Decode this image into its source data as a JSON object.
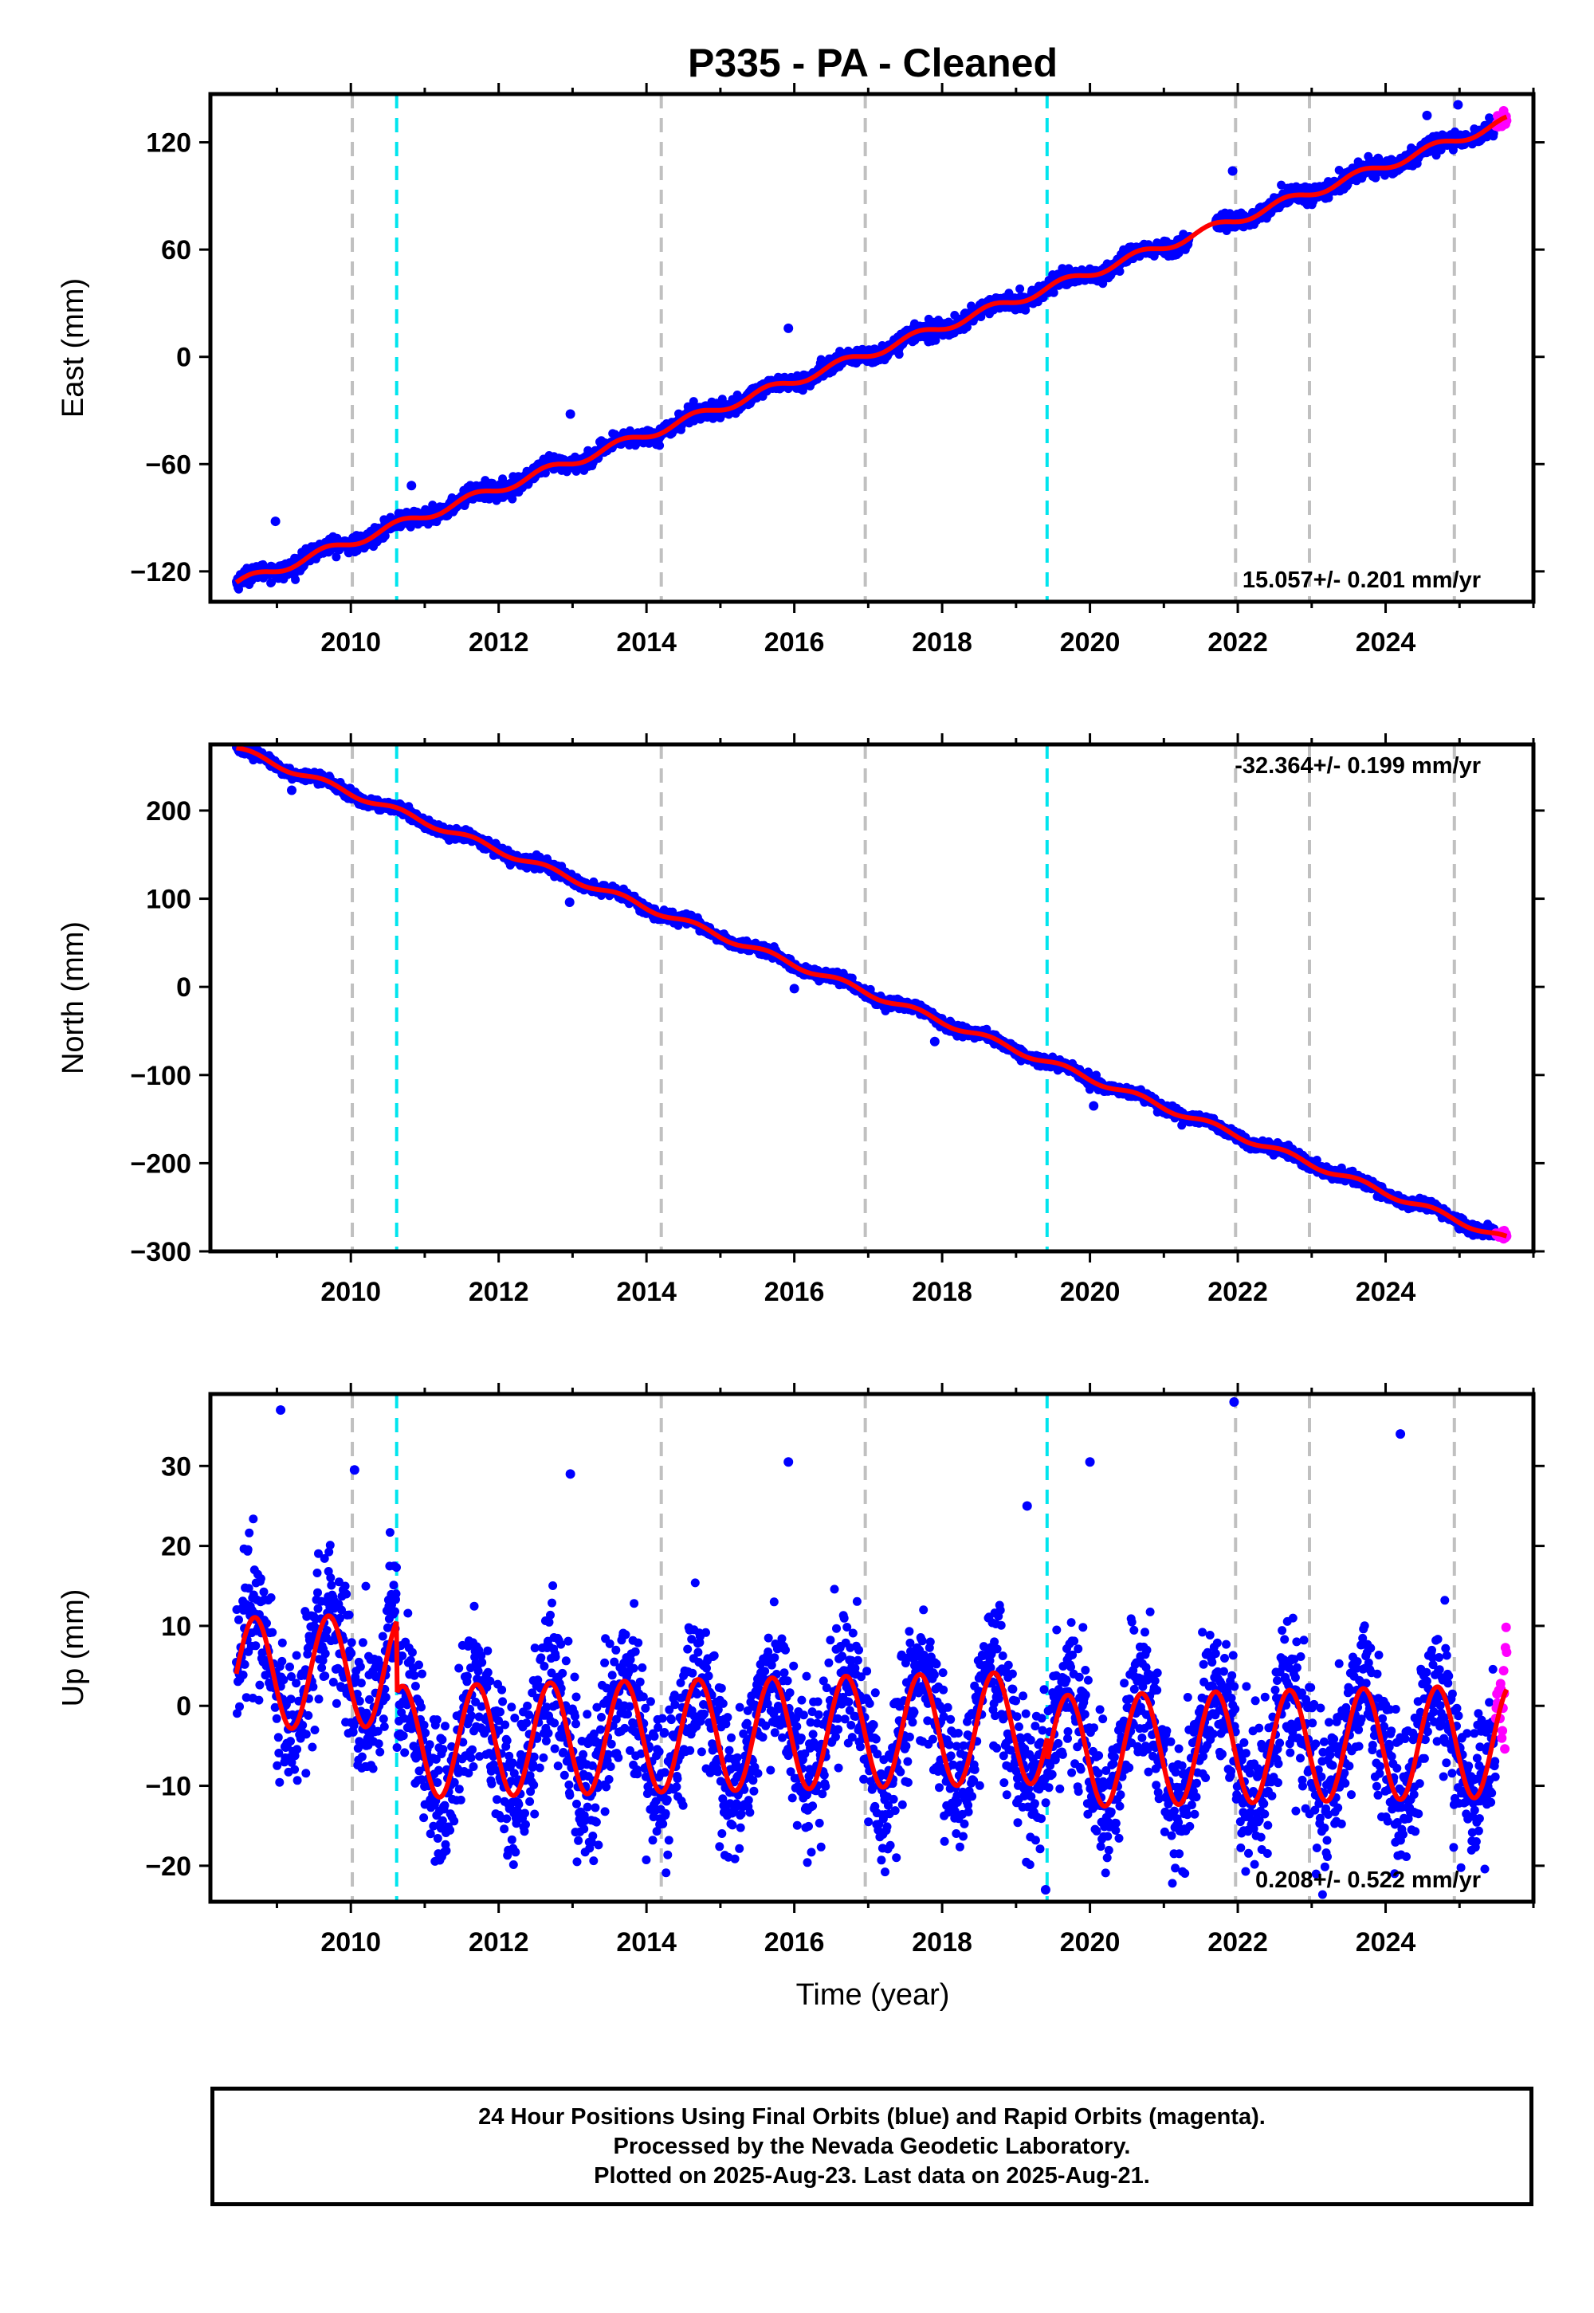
{
  "title": "P335  - PA - Cleaned",
  "colors": {
    "final_orbits": "#0000ff",
    "rapid_orbits": "#ff00ff",
    "model_fit": "#ff0000",
    "antenna_change": "#00e5ee",
    "equipment_change": "#c0c0c0"
  },
  "xlabel": "Time (year)",
  "footer": {
    "line1": "24 Hour Positions Using Final Orbits (blue) and Rapid Orbits (magenta).",
    "line2": "Processed by the Nevada Geodetic Laboratory.",
    "line3": "Plotted on 2025-Aug-23. Last data on 2025-Aug-21."
  },
  "chart_data": [
    {
      "type": "scatter",
      "component": "east",
      "ylabel": "East (mm)",
      "rate_label": "15.057+/- 0.201 mm/yr",
      "rate_position": "bottom-right",
      "xlim": [
        2008.1,
        2026.0
      ],
      "ylim": [
        -137,
        147
      ],
      "xticks": [
        2010,
        2012,
        2014,
        2016,
        2018,
        2020,
        2022,
        2024
      ],
      "yticks": [
        -120,
        -60,
        0,
        60,
        120
      ],
      "rate_mm_per_yr": 15.057,
      "value_at_start": -127,
      "start_year": 2008.45,
      "end_year": 2025.64,
      "seasonal_amplitude": 2.5,
      "scatter_mm": 2.2,
      "antenna_changes": [
        2010.62,
        2019.42
      ],
      "equipment_changes": [
        2010.02,
        2014.2,
        2016.96,
        2021.97,
        2022.97,
        2024.93
      ],
      "spikes": [
        {
          "year": 2008.98,
          "value": -92
        },
        {
          "year": 2010.82,
          "value": -72
        },
        {
          "year": 2012.97,
          "value": -32
        },
        {
          "year": 2015.92,
          "value": 16
        },
        {
          "year": 2021.93,
          "value": 104
        },
        {
          "year": 2023.9,
          "value": 111
        },
        {
          "year": 2024.56,
          "value": 135
        },
        {
          "year": 2024.98,
          "value": 141
        }
      ]
    },
    {
      "type": "scatter",
      "component": "north",
      "ylabel": "North (mm)",
      "rate_label": "-32.364+/- 0.199 mm/yr",
      "rate_position": "top-right",
      "xlim": [
        2008.1,
        2026.0
      ],
      "ylim": [
        -300,
        275
      ],
      "xticks": [
        2010,
        2012,
        2014,
        2016,
        2018,
        2020,
        2022,
        2024
      ],
      "yticks": [
        -300,
        -200,
        -100,
        0,
        100,
        200
      ],
      "rate_mm_per_yr": -32.364,
      "value_at_start": 270,
      "start_year": 2008.45,
      "end_year": 2025.64,
      "seasonal_amplitude": 3.5,
      "scatter_mm": 3.0,
      "antenna_changes": [
        2010.62,
        2019.42
      ],
      "equipment_changes": [
        2010.02,
        2014.2,
        2016.96,
        2021.97,
        2022.97,
        2024.93
      ],
      "spikes": [
        {
          "year": 2009.2,
          "value": 223
        },
        {
          "year": 2012.96,
          "value": 96
        },
        {
          "year": 2016.0,
          "value": -2
        },
        {
          "year": 2017.9,
          "value": -62
        },
        {
          "year": 2020.05,
          "value": -135
        }
      ]
    },
    {
      "type": "scatter",
      "component": "up",
      "ylabel": "Up (mm)",
      "rate_label": "0.208+/- 0.522 mm/yr",
      "rate_position": "bottom-right",
      "xlim": [
        2008.1,
        2026.0
      ],
      "ylim": [
        -24.5,
        39
      ],
      "xticks": [
        2010,
        2012,
        2014,
        2016,
        2018,
        2020,
        2022,
        2024
      ],
      "yticks": [
        -20,
        -10,
        0,
        10,
        20,
        30
      ],
      "rate_mm_per_yr": 0.208,
      "value_at_start": 10,
      "start_year": 2008.45,
      "end_year": 2025.64,
      "seasonal_amplitude": 7,
      "scatter_mm": 4.5,
      "antenna_changes": [
        2010.62,
        2019.42
      ],
      "equipment_changes": [
        2010.02,
        2014.2,
        2016.96,
        2021.97,
        2022.97,
        2024.93
      ],
      "spikes": [
        {
          "year": 2009.05,
          "value": 37
        },
        {
          "year": 2010.05,
          "value": 29.5
        },
        {
          "year": 2012.97,
          "value": 29
        },
        {
          "year": 2015.92,
          "value": 30.5
        },
        {
          "year": 2019.15,
          "value": 25
        },
        {
          "year": 2020.0,
          "value": 30.5
        },
        {
          "year": 2021.95,
          "value": 38
        },
        {
          "year": 2024.2,
          "value": 34
        },
        {
          "year": 2019.4,
          "value": -23
        }
      ]
    }
  ]
}
